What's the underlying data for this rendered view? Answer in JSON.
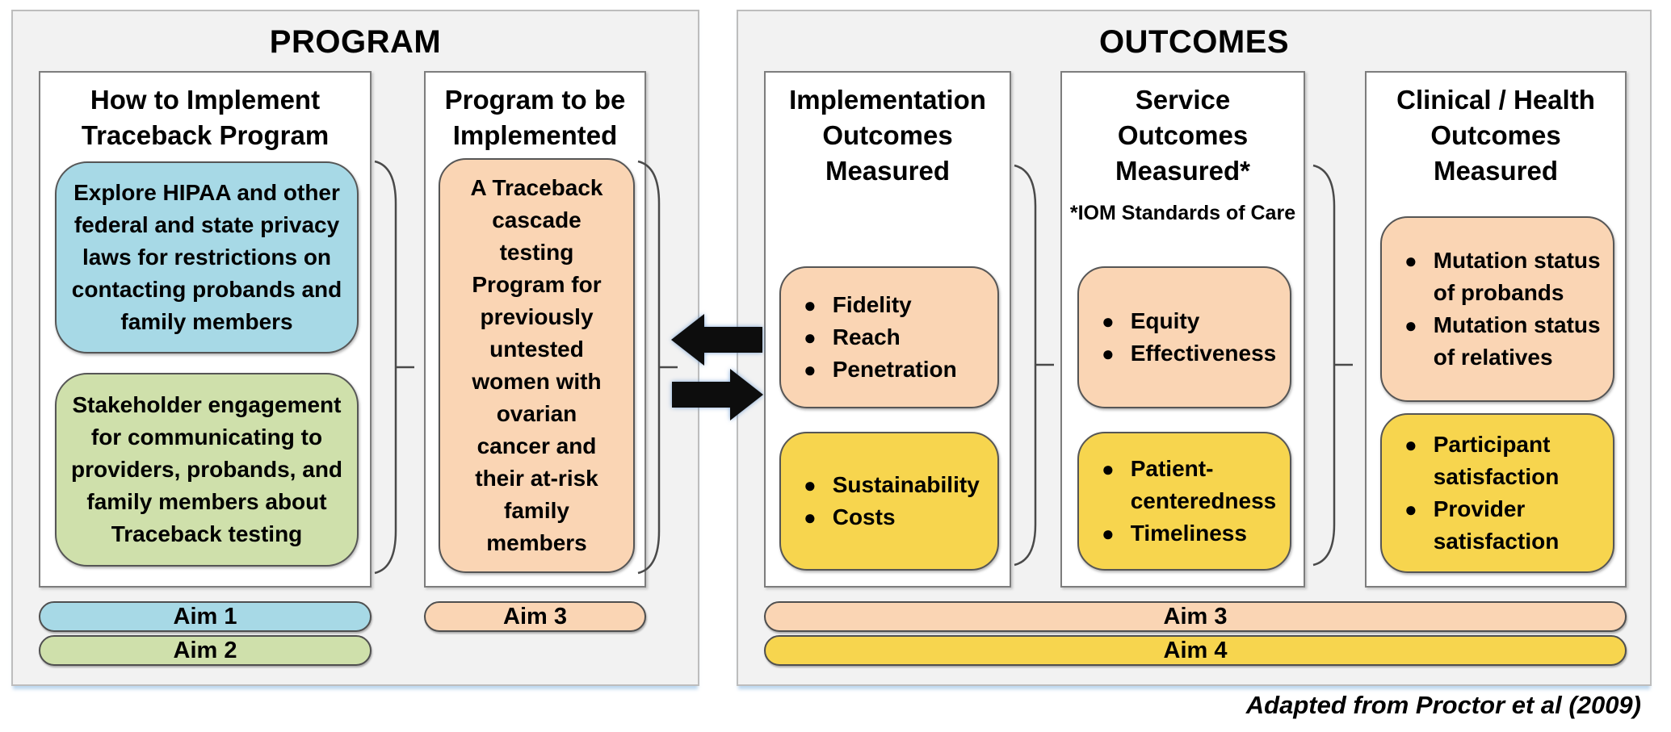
{
  "program_panel": {
    "title": "PROGRAM",
    "col_how": {
      "title": "How to Implement\nTraceback Program",
      "blue_box": "Explore HIPAA and other\nfederal and state privacy\nlaws for restrictions on\ncontacting probands and\nfamily members",
      "green_box": "Stakeholder engagement\nfor communicating to\nproviders, probands, and\nfamily members about\nTraceback testing",
      "aim1": "Aim 1",
      "aim2": "Aim 2"
    },
    "col_program": {
      "title": "Program to be\nImplemented",
      "peach_box": "A Traceback\ncascade\ntesting\nProgram for\npreviously\nuntested\nwomen with\novarian\ncancer and\ntheir at-risk\nfamily\nmembers",
      "aim3": "Aim 3"
    }
  },
  "outcomes_panel": {
    "title": "OUTCOMES",
    "col_implementation": {
      "title": "Implementation\nOutcomes\nMeasured",
      "peach_bullets": [
        "Fidelity",
        "Reach",
        "Penetration"
      ],
      "yellow_bullets": [
        "Sustainability",
        "Costs"
      ]
    },
    "col_service": {
      "title": "Service\nOutcomes\nMeasured*",
      "note": "*IOM Standards of Care",
      "peach_bullets": [
        "Equity",
        "Effectiveness"
      ],
      "yellow_bullets": [
        "Patient-\ncenteredness",
        "Timeliness"
      ]
    },
    "col_clinical": {
      "title": "Clinical / Health\nOutcomes\nMeasured",
      "peach_bullets": [
        "Mutation status\nof probands",
        "Mutation status\nof relatives"
      ],
      "yellow_bullets": [
        "Participant\nsatisfaction",
        "Provider\nsatisfaction"
      ]
    },
    "aim3": "Aim 3",
    "aim4": "Aim 4"
  },
  "footer": "Adapted from Proctor et al (2009)",
  "icons": {
    "arrow_left": "block-arrow-left",
    "arrow_right": "block-arrow-right",
    "brace": "curly-brace-right"
  },
  "colors": {
    "blue": "#a7d9e6",
    "green": "#cfe0ab",
    "peach": "#fad5b4",
    "yellow": "#f7d54e",
    "panel_bg": "#f2f2f2",
    "arrow": "#0d0d0d",
    "brace": "#4a4a4a"
  }
}
